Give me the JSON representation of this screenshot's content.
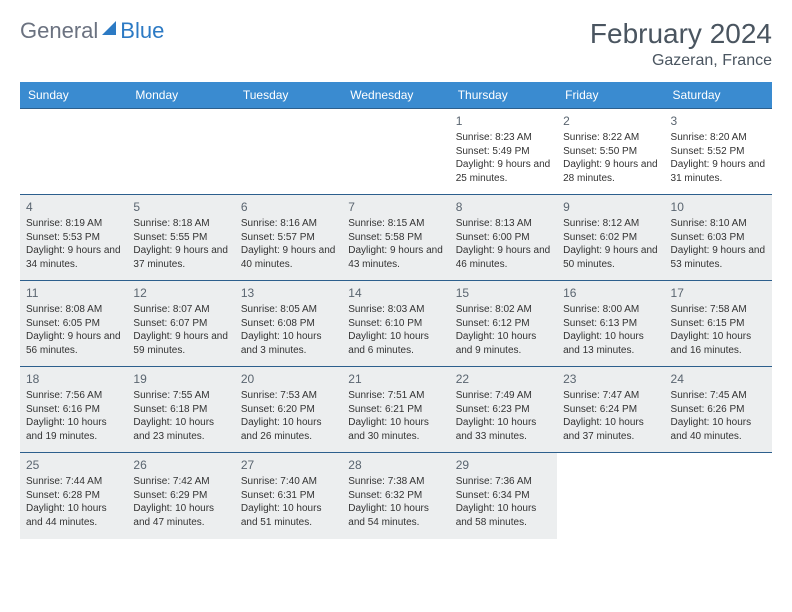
{
  "logo": {
    "general": "General",
    "blue": "Blue"
  },
  "title": "February 2024",
  "location": "Gazeran, France",
  "day_headers": [
    "Sunday",
    "Monday",
    "Tuesday",
    "Wednesday",
    "Thursday",
    "Friday",
    "Saturday"
  ],
  "header_bg": "#3a8bd0",
  "header_fg": "#ffffff",
  "border_color": "#2c5f8d",
  "shade_color": "#eceeef",
  "text_color": "#333333",
  "title_color": "#4a5560",
  "logo_blue_color": "#2c7ac4",
  "logo_gray_color": "#6b7280",
  "weeks": [
    [
      {
        "day": "",
        "sunrise": "",
        "sunset": "",
        "daylight": "",
        "shaded": false
      },
      {
        "day": "",
        "sunrise": "",
        "sunset": "",
        "daylight": "",
        "shaded": false
      },
      {
        "day": "",
        "sunrise": "",
        "sunset": "",
        "daylight": "",
        "shaded": false
      },
      {
        "day": "",
        "sunrise": "",
        "sunset": "",
        "daylight": "",
        "shaded": false
      },
      {
        "day": "1",
        "sunrise": "Sunrise: 8:23 AM",
        "sunset": "Sunset: 5:49 PM",
        "daylight": "Daylight: 9 hours and 25 minutes.",
        "shaded": false
      },
      {
        "day": "2",
        "sunrise": "Sunrise: 8:22 AM",
        "sunset": "Sunset: 5:50 PM",
        "daylight": "Daylight: 9 hours and 28 minutes.",
        "shaded": false
      },
      {
        "day": "3",
        "sunrise": "Sunrise: 8:20 AM",
        "sunset": "Sunset: 5:52 PM",
        "daylight": "Daylight: 9 hours and 31 minutes.",
        "shaded": false
      }
    ],
    [
      {
        "day": "4",
        "sunrise": "Sunrise: 8:19 AM",
        "sunset": "Sunset: 5:53 PM",
        "daylight": "Daylight: 9 hours and 34 minutes.",
        "shaded": true
      },
      {
        "day": "5",
        "sunrise": "Sunrise: 8:18 AM",
        "sunset": "Sunset: 5:55 PM",
        "daylight": "Daylight: 9 hours and 37 minutes.",
        "shaded": true
      },
      {
        "day": "6",
        "sunrise": "Sunrise: 8:16 AM",
        "sunset": "Sunset: 5:57 PM",
        "daylight": "Daylight: 9 hours and 40 minutes.",
        "shaded": true
      },
      {
        "day": "7",
        "sunrise": "Sunrise: 8:15 AM",
        "sunset": "Sunset: 5:58 PM",
        "daylight": "Daylight: 9 hours and 43 minutes.",
        "shaded": true
      },
      {
        "day": "8",
        "sunrise": "Sunrise: 8:13 AM",
        "sunset": "Sunset: 6:00 PM",
        "daylight": "Daylight: 9 hours and 46 minutes.",
        "shaded": true
      },
      {
        "day": "9",
        "sunrise": "Sunrise: 8:12 AM",
        "sunset": "Sunset: 6:02 PM",
        "daylight": "Daylight: 9 hours and 50 minutes.",
        "shaded": true
      },
      {
        "day": "10",
        "sunrise": "Sunrise: 8:10 AM",
        "sunset": "Sunset: 6:03 PM",
        "daylight": "Daylight: 9 hours and 53 minutes.",
        "shaded": true
      }
    ],
    [
      {
        "day": "11",
        "sunrise": "Sunrise: 8:08 AM",
        "sunset": "Sunset: 6:05 PM",
        "daylight": "Daylight: 9 hours and 56 minutes.",
        "shaded": true
      },
      {
        "day": "12",
        "sunrise": "Sunrise: 8:07 AM",
        "sunset": "Sunset: 6:07 PM",
        "daylight": "Daylight: 9 hours and 59 minutes.",
        "shaded": true
      },
      {
        "day": "13",
        "sunrise": "Sunrise: 8:05 AM",
        "sunset": "Sunset: 6:08 PM",
        "daylight": "Daylight: 10 hours and 3 minutes.",
        "shaded": true
      },
      {
        "day": "14",
        "sunrise": "Sunrise: 8:03 AM",
        "sunset": "Sunset: 6:10 PM",
        "daylight": "Daylight: 10 hours and 6 minutes.",
        "shaded": true
      },
      {
        "day": "15",
        "sunrise": "Sunrise: 8:02 AM",
        "sunset": "Sunset: 6:12 PM",
        "daylight": "Daylight: 10 hours and 9 minutes.",
        "shaded": true
      },
      {
        "day": "16",
        "sunrise": "Sunrise: 8:00 AM",
        "sunset": "Sunset: 6:13 PM",
        "daylight": "Daylight: 10 hours and 13 minutes.",
        "shaded": true
      },
      {
        "day": "17",
        "sunrise": "Sunrise: 7:58 AM",
        "sunset": "Sunset: 6:15 PM",
        "daylight": "Daylight: 10 hours and 16 minutes.",
        "shaded": true
      }
    ],
    [
      {
        "day": "18",
        "sunrise": "Sunrise: 7:56 AM",
        "sunset": "Sunset: 6:16 PM",
        "daylight": "Daylight: 10 hours and 19 minutes.",
        "shaded": true
      },
      {
        "day": "19",
        "sunrise": "Sunrise: 7:55 AM",
        "sunset": "Sunset: 6:18 PM",
        "daylight": "Daylight: 10 hours and 23 minutes.",
        "shaded": true
      },
      {
        "day": "20",
        "sunrise": "Sunrise: 7:53 AM",
        "sunset": "Sunset: 6:20 PM",
        "daylight": "Daylight: 10 hours and 26 minutes.",
        "shaded": true
      },
      {
        "day": "21",
        "sunrise": "Sunrise: 7:51 AM",
        "sunset": "Sunset: 6:21 PM",
        "daylight": "Daylight: 10 hours and 30 minutes.",
        "shaded": true
      },
      {
        "day": "22",
        "sunrise": "Sunrise: 7:49 AM",
        "sunset": "Sunset: 6:23 PM",
        "daylight": "Daylight: 10 hours and 33 minutes.",
        "shaded": true
      },
      {
        "day": "23",
        "sunrise": "Sunrise: 7:47 AM",
        "sunset": "Sunset: 6:24 PM",
        "daylight": "Daylight: 10 hours and 37 minutes.",
        "shaded": true
      },
      {
        "day": "24",
        "sunrise": "Sunrise: 7:45 AM",
        "sunset": "Sunset: 6:26 PM",
        "daylight": "Daylight: 10 hours and 40 minutes.",
        "shaded": true
      }
    ],
    [
      {
        "day": "25",
        "sunrise": "Sunrise: 7:44 AM",
        "sunset": "Sunset: 6:28 PM",
        "daylight": "Daylight: 10 hours and 44 minutes.",
        "shaded": true
      },
      {
        "day": "26",
        "sunrise": "Sunrise: 7:42 AM",
        "sunset": "Sunset: 6:29 PM",
        "daylight": "Daylight: 10 hours and 47 minutes.",
        "shaded": true
      },
      {
        "day": "27",
        "sunrise": "Sunrise: 7:40 AM",
        "sunset": "Sunset: 6:31 PM",
        "daylight": "Daylight: 10 hours and 51 minutes.",
        "shaded": true
      },
      {
        "day": "28",
        "sunrise": "Sunrise: 7:38 AM",
        "sunset": "Sunset: 6:32 PM",
        "daylight": "Daylight: 10 hours and 54 minutes.",
        "shaded": true
      },
      {
        "day": "29",
        "sunrise": "Sunrise: 7:36 AM",
        "sunset": "Sunset: 6:34 PM",
        "daylight": "Daylight: 10 hours and 58 minutes.",
        "shaded": true
      },
      {
        "day": "",
        "sunrise": "",
        "sunset": "",
        "daylight": "",
        "shaded": false
      },
      {
        "day": "",
        "sunrise": "",
        "sunset": "",
        "daylight": "",
        "shaded": false
      }
    ]
  ]
}
